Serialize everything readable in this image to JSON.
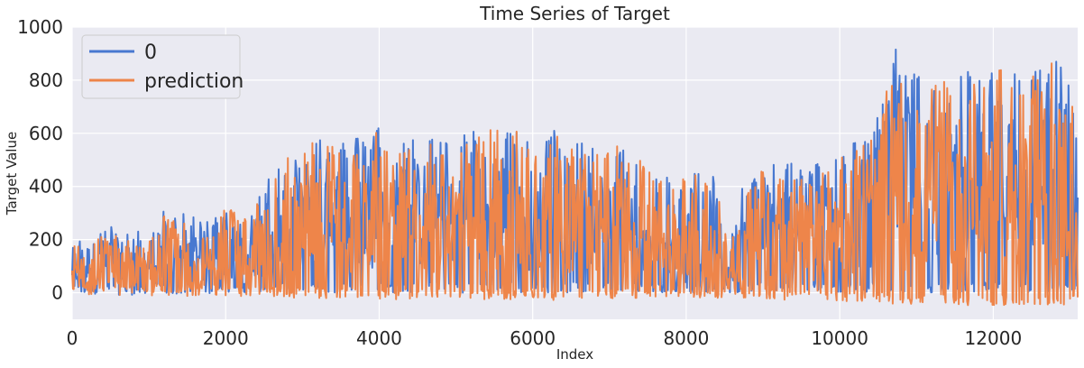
{
  "chart_data": {
    "type": "line",
    "title": "Time Series of Target",
    "xlabel": "Index",
    "ylabel": "Target Value",
    "xlim": [
      0,
      13100
    ],
    "ylim": [
      -100,
      1000
    ],
    "xticks": [
      0,
      2000,
      4000,
      6000,
      8000,
      10000,
      12000
    ],
    "yticks": [
      0,
      200,
      400,
      600,
      800,
      1000
    ],
    "grid": true,
    "legend_position": "top-left",
    "series": [
      {
        "name": "0",
        "color": "#4878d0",
        "envelope": {
          "x": [
            0,
            200,
            500,
            800,
            1100,
            1200,
            1500,
            1800,
            2000,
            2200,
            2500,
            2800,
            3100,
            3300,
            3600,
            4000,
            4300,
            4600,
            4900,
            5200,
            5600,
            5800,
            6000,
            6300,
            6600,
            6900,
            7200,
            7500,
            7800,
            8000,
            8200,
            8400,
            8550,
            8700,
            9000,
            9300,
            9600,
            9900,
            10100,
            10400,
            10600,
            10700,
            10800,
            11000,
            11300,
            11600,
            11900,
            12100,
            12400,
            12600,
            12800,
            13000,
            13100
          ],
          "max": [
            200,
            220,
            250,
            230,
            250,
            330,
            290,
            270,
            340,
            310,
            420,
            530,
            600,
            610,
            570,
            640,
            580,
            590,
            600,
            610,
            650,
            640,
            540,
            620,
            600,
            560,
            580,
            550,
            420,
            480,
            460,
            440,
            180,
            380,
            500,
            500,
            480,
            520,
            560,
            610,
            800,
            960,
            830,
            840,
            820,
            840,
            860,
            870,
            820,
            860,
            880,
            900,
            700
          ],
          "min": [
            -10,
            -10,
            -8,
            -8,
            -5,
            -5,
            -5,
            -5,
            0,
            0,
            0,
            0,
            0,
            0,
            0,
            0,
            0,
            0,
            0,
            0,
            0,
            0,
            0,
            0,
            0,
            0,
            0,
            0,
            0,
            0,
            0,
            0,
            0,
            0,
            0,
            0,
            0,
            0,
            0,
            0,
            0,
            0,
            0,
            0,
            0,
            0,
            0,
            0,
            0,
            0,
            0,
            0,
            0
          ]
        }
      },
      {
        "name": "prediction",
        "color": "#ee854a",
        "envelope": {
          "x": [
            0,
            200,
            500,
            800,
            1100,
            1200,
            1500,
            1800,
            2000,
            2200,
            2500,
            2800,
            3100,
            3300,
            3600,
            4000,
            4300,
            4600,
            4900,
            5200,
            5600,
            5800,
            6000,
            6300,
            6600,
            6900,
            7200,
            7500,
            7800,
            8000,
            8200,
            8400,
            8550,
            8700,
            9000,
            9300,
            9600,
            9900,
            10100,
            10400,
            10600,
            10700,
            10800,
            11000,
            11300,
            11600,
            11900,
            12100,
            12400,
            12600,
            12800,
            13000,
            13100
          ],
          "max": [
            180,
            200,
            220,
            210,
            230,
            300,
            270,
            250,
            320,
            300,
            400,
            510,
            570,
            590,
            550,
            610,
            560,
            570,
            580,
            590,
            630,
            620,
            520,
            600,
            580,
            540,
            560,
            530,
            400,
            460,
            440,
            420,
            170,
            360,
            470,
            470,
            460,
            500,
            530,
            580,
            760,
            810,
            790,
            800,
            790,
            810,
            830,
            840,
            800,
            830,
            880,
            870,
            650
          ],
          "min": [
            -20,
            -20,
            -18,
            -15,
            -12,
            -12,
            -15,
            -15,
            -15,
            -15,
            -18,
            -20,
            -20,
            -22,
            -20,
            -25,
            -25,
            -22,
            -25,
            -25,
            -30,
            -30,
            -25,
            -28,
            -25,
            -22,
            -22,
            -20,
            -18,
            -18,
            -20,
            -20,
            -15,
            -20,
            -25,
            -28,
            -30,
            -30,
            -32,
            -35,
            -40,
            -42,
            -40,
            -45,
            -42,
            -48,
            -50,
            -45,
            -55,
            -50,
            -48,
            -52,
            -45
          ]
        }
      }
    ]
  }
}
